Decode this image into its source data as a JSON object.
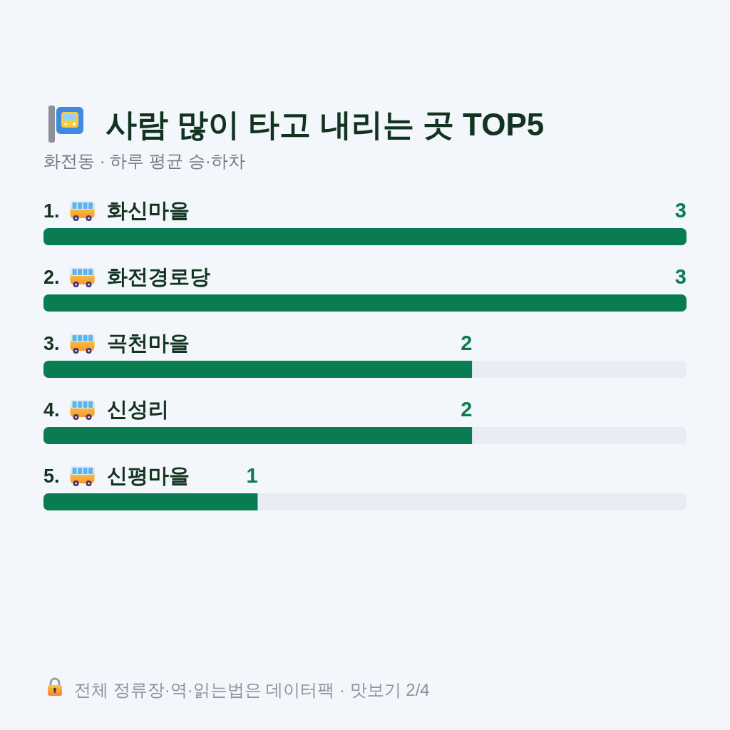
{
  "chart_data": {
    "type": "bar",
    "orientation": "horizontal",
    "stacked": true,
    "title": "사람 많이 타고 내리는 곳 TOP5",
    "subtitle": "화전동 · 하루 평균 승·하차",
    "categories": [
      "1. 화신마을",
      "2. 화전경로당",
      "3. 곡천마을",
      "4. 신성리",
      "5. 신평마을"
    ],
    "series": [
      {
        "color": "#0a7c52",
        "values": [
          3,
          3,
          2,
          2,
          1
        ],
        "value_labels": [
          "3",
          "3",
          "2",
          "2",
          "1"
        ]
      },
      {
        "color": "#e8edf3",
        "values": [
          0,
          0,
          1,
          1,
          2
        ]
      }
    ],
    "xlim": [
      0,
      3
    ],
    "annotations": [
      "전체 정류장·역·읽는법은 데이터팩 · 맛보기 2/4"
    ]
  }
}
